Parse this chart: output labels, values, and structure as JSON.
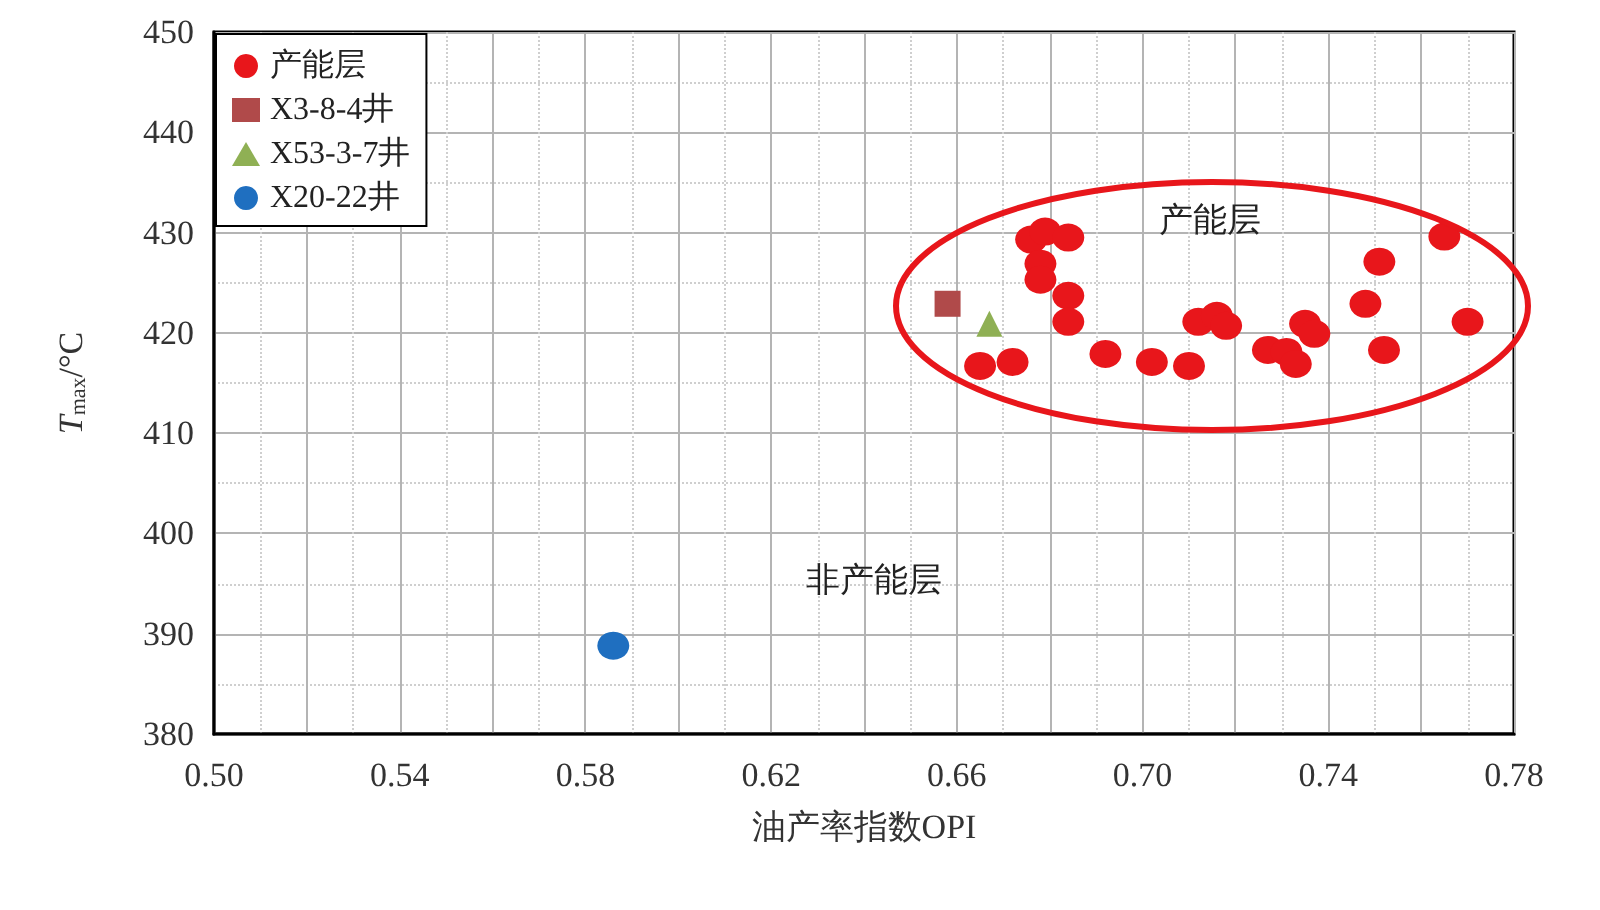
{
  "chart_data": {
    "type": "scatter",
    "xlabel": "油产率指数OPI",
    "ylabel": "T$_{max}$/°C",
    "xlim": [
      0.5,
      0.78
    ],
    "ylim": [
      380,
      450
    ],
    "xticks": [
      {
        "value": 0.5,
        "label": "0.50"
      },
      {
        "value": 0.52,
        "label": null
      },
      {
        "value": 0.54,
        "label": "0.54"
      },
      {
        "value": 0.56,
        "label": null
      },
      {
        "value": 0.58,
        "label": "0.58"
      },
      {
        "value": 0.6,
        "label": null
      },
      {
        "value": 0.62,
        "label": "0.62"
      },
      {
        "value": 0.64,
        "label": null
      },
      {
        "value": 0.66,
        "label": "0.66"
      },
      {
        "value": 0.68,
        "label": null
      },
      {
        "value": 0.7,
        "label": "0.70"
      },
      {
        "value": 0.72,
        "label": null
      },
      {
        "value": 0.74,
        "label": "0.74"
      },
      {
        "value": 0.76,
        "label": null
      },
      {
        "value": 0.78,
        "label": "0.78"
      }
    ],
    "yticks": [
      380,
      390,
      400,
      410,
      420,
      430,
      440,
      450
    ],
    "grid": true,
    "legend": "top left",
    "series": [
      {
        "name": "产能层",
        "color": "#e8161b",
        "marker": "circle",
        "x": [
          0.665,
          0.672,
          0.692,
          0.702,
          0.71,
          0.712,
          0.716,
          0.718,
          0.727,
          0.731,
          0.733,
          0.735,
          0.737,
          0.748,
          0.751,
          0.752,
          0.765,
          0.77,
          0.676,
          0.679,
          0.684,
          0.678,
          0.678,
          0.684,
          0.684
        ],
        "values": [
          416.7,
          417.1,
          417.9,
          417.1,
          416.7,
          421.1,
          421.7,
          420.7,
          418.3,
          418.1,
          416.9,
          420.9,
          419.9,
          422.9,
          427.1,
          418.3,
          429.6,
          421.1,
          429.3,
          430.1,
          429.5,
          426.9,
          425.3,
          423.7,
          421.1
        ]
      },
      {
        "name": "X3-8-4井",
        "color": "#b04a4a",
        "marker": "square",
        "x": [
          0.658
        ],
        "values": [
          422.9
        ]
      },
      {
        "name": "X53-3-7井",
        "color": "#8fb054",
        "marker": "triangle",
        "x": [
          0.667
        ],
        "values": [
          420.9
        ]
      },
      {
        "name": "X20-22井",
        "color": "#1f6fc0",
        "marker": "circle",
        "x": [
          0.586
        ],
        "values": [
          388.8
        ]
      }
    ],
    "annotations": [
      "产能层",
      "非产能层"
    ]
  }
}
